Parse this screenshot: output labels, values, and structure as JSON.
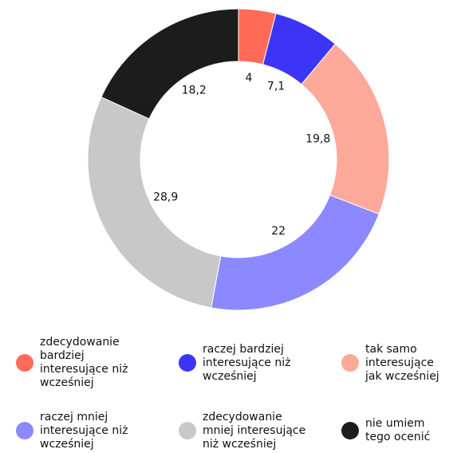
{
  "chart_data": {
    "type": "donut",
    "categories": [
      "zdecydowanie bardziej interesujące niż wcześniej",
      "raczej bardziej interesujące niż wcześniej",
      "tak samo interesujące jak wcześniej",
      "raczej mniej interesujące niż wcześniej",
      "zdecydowanie mniej interesujące niż wcześniej",
      "nie umiem tego ocenić"
    ],
    "values": [
      4,
      7.1,
      19.8,
      22,
      28.9,
      18.2
    ],
    "value_labels": [
      "4",
      "7,1",
      "19,8",
      "22",
      "28,9",
      "18,2"
    ],
    "colors": [
      "#ff6b57",
      "#3d35f5",
      "#fca99a",
      "#8c88ff",
      "#c8c8c8",
      "#1c1c1c"
    ]
  }
}
